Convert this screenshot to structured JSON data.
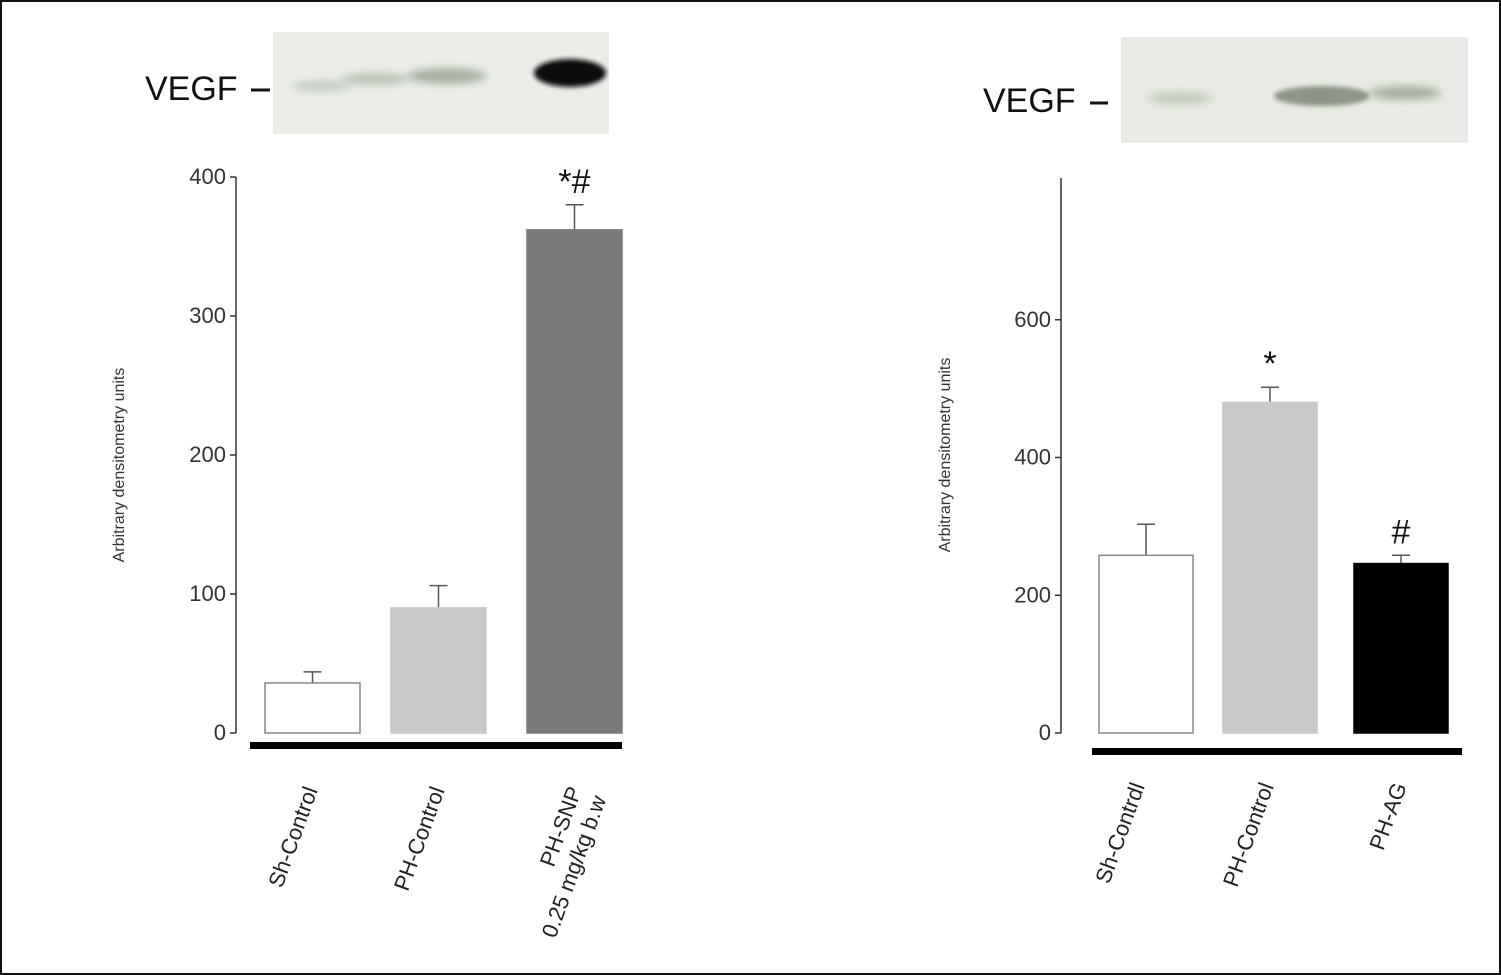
{
  "chart_data": [
    {
      "type": "bar",
      "blot_label": "VEGF",
      "ylabel": "Arbitrary densitometry units",
      "ylim": [
        0,
        400
      ],
      "yticks": [
        "0",
        "100",
        "200",
        "300",
        "400"
      ],
      "categories": [
        "Sh-Control",
        "PH-Control",
        "PH-SNP\n0.25 mg/kg b.w"
      ],
      "values": [
        36,
        90,
        362
      ],
      "errors": [
        8,
        16,
        18
      ],
      "markers": [
        "",
        "",
        "*#"
      ],
      "bar_colors": [
        "#ffffff",
        "#c9c9c9",
        "#7a7a7a"
      ]
    },
    {
      "type": "bar",
      "blot_label": "VEGF",
      "ylabel": "Arbitrary densitometry units",
      "ylim": [
        0,
        800
      ],
      "yticks": [
        "0",
        "200",
        "400",
        "600"
      ],
      "categories": [
        "Sh-Contrdl",
        "PH-Control",
        "PH-AG"
      ],
      "values": [
        258,
        480,
        246
      ],
      "errors": [
        45,
        22,
        12
      ],
      "markers": [
        "",
        "*",
        "#"
      ],
      "bar_colors": [
        "#ffffff",
        "#c9c9c9",
        "#000000"
      ]
    }
  ]
}
